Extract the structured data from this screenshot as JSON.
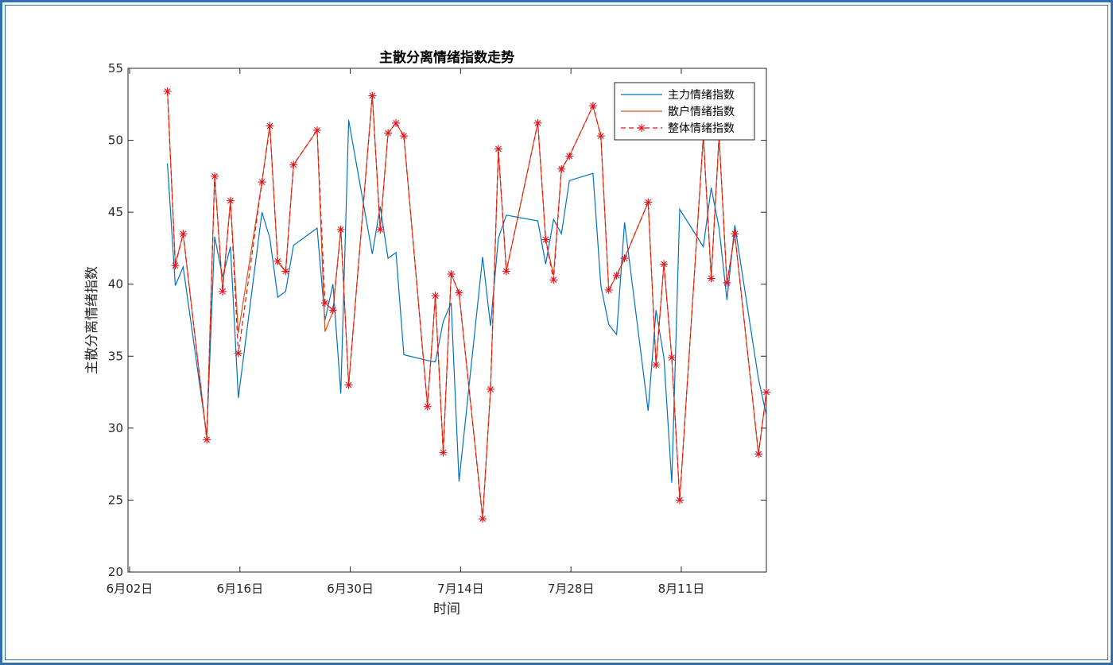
{
  "chart_data": {
    "type": "line",
    "title": "主散分离情绪指数走势",
    "xlabel": "时间",
    "ylabel": "主散分离情绪指数",
    "ylim": [
      20,
      55
    ],
    "xlim": [
      "2019-06-02",
      "2019-08-22"
    ],
    "x_ticks": [
      "6月02日",
      "6月16日",
      "6月30日",
      "7月14日",
      "7月28日",
      "8月11日"
    ],
    "y_ticks": [
      20,
      25,
      30,
      35,
      40,
      45,
      50,
      55
    ],
    "grid": false,
    "legend_position": "top-right",
    "x": [
      "2019-06-07",
      "2019-06-08",
      "2019-06-09",
      "2019-06-12",
      "2019-06-13",
      "2019-06-14",
      "2019-06-15",
      "2019-06-16",
      "2019-06-19",
      "2019-06-20",
      "2019-06-21",
      "2019-06-22",
      "2019-06-23",
      "2019-06-26",
      "2019-06-27",
      "2019-06-28",
      "2019-06-29",
      "2019-06-30",
      "2019-07-03",
      "2019-07-04",
      "2019-07-05",
      "2019-07-06",
      "2019-07-07",
      "2019-07-10",
      "2019-07-11",
      "2019-07-12",
      "2019-07-13",
      "2019-07-14",
      "2019-07-17",
      "2019-07-18",
      "2019-07-19",
      "2019-07-20",
      "2019-07-24",
      "2019-07-25",
      "2019-07-26",
      "2019-07-27",
      "2019-07-28",
      "2019-07-31",
      "2019-08-01",
      "2019-08-02",
      "2019-08-03",
      "2019-08-04",
      "2019-08-07",
      "2019-08-08",
      "2019-08-09",
      "2019-08-10",
      "2019-08-11",
      "2019-08-14",
      "2019-08-15",
      "2019-08-16",
      "2019-08-17",
      "2019-08-18",
      "2019-08-21",
      "2019-08-22"
    ],
    "series": [
      {
        "name": "主力情绪指数",
        "color": "#0072bd",
        "style": "solid",
        "values": [
          48.4,
          39.9,
          41.2,
          29.5,
          43.3,
          40.5,
          42.6,
          32.1,
          45.0,
          43.2,
          39.1,
          39.5,
          42.7,
          43.9,
          37.5,
          40.0,
          32.4,
          51.4,
          42.1,
          45.4,
          41.8,
          42.2,
          35.1,
          34.7,
          34.6,
          37.4,
          38.7,
          26.3,
          41.9,
          37.1,
          43.2,
          44.8,
          44.4,
          41.4,
          44.5,
          43.5,
          47.2,
          47.7,
          39.9,
          37.2,
          36.5,
          44.3,
          31.2,
          38.2,
          34.9,
          26.2,
          45.2,
          42.6,
          46.7,
          43.9,
          38.9,
          44.1,
          33.4,
          30.9
        ]
      },
      {
        "name": "散户情绪指数",
        "color": "#d95319",
        "style": "solid",
        "values": [
          53.5,
          41.4,
          43.5,
          29.3,
          47.6,
          39.6,
          45.8,
          36.6,
          47.1,
          51.1,
          41.5,
          40.9,
          48.3,
          50.7,
          36.7,
          38.1,
          43.9,
          33.0,
          53.2,
          43.8,
          50.5,
          51.2,
          50.3,
          31.6,
          39.1,
          28.4,
          40.7,
          39.4,
          23.8,
          32.6,
          49.3,
          40.9,
          51.2,
          43.1,
          40.6,
          48.0,
          48.9,
          52.4,
          50.3,
          39.6,
          40.6,
          41.8,
          45.7,
          34.4,
          41.4,
          34.9,
          25.0,
          50.3,
          40.5,
          50.3,
          40.0,
          43.5,
          28.2,
          32.5
        ]
      },
      {
        "name": "整体情绪指数",
        "color": "#e3141c",
        "style": "dashed",
        "marker": "asterisk",
        "values": [
          53.4,
          41.3,
          43.5,
          29.2,
          47.5,
          39.5,
          45.8,
          35.2,
          47.1,
          51.0,
          41.6,
          40.9,
          48.3,
          50.7,
          38.7,
          38.2,
          43.8,
          33.0,
          53.1,
          43.8,
          50.5,
          51.2,
          50.3,
          31.5,
          39.2,
          28.3,
          40.7,
          39.4,
          23.7,
          32.7,
          49.4,
          40.9,
          51.2,
          43.1,
          40.3,
          48.0,
          48.9,
          52.4,
          50.3,
          39.6,
          40.6,
          41.8,
          45.7,
          34.4,
          41.4,
          34.9,
          25.0,
          50.3,
          40.4,
          50.3,
          40.1,
          43.5,
          28.2,
          32.5
        ]
      }
    ]
  }
}
